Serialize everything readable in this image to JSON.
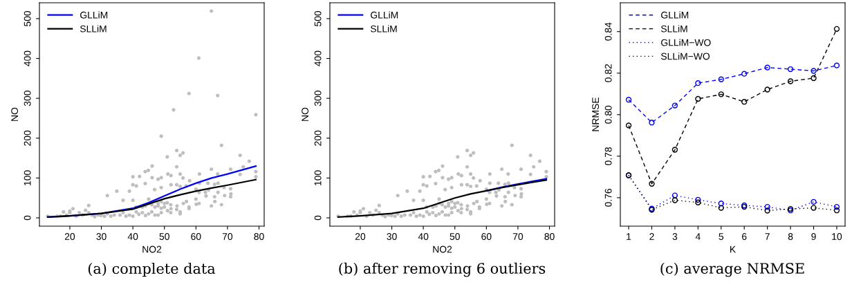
{
  "chart_data": [
    {
      "type": "scatter",
      "xlabel": "NO2",
      "ylabel": "NO",
      "xlim": [
        10.36,
        81.64
      ],
      "ylim": [
        -20.8,
        539.8
      ],
      "xticks": [
        20,
        30,
        40,
        50,
        60,
        70,
        80
      ],
      "yticks": [
        0,
        100,
        200,
        300,
        400,
        500
      ],
      "grid": false,
      "legend": "top left",
      "annotations": [
        "(a) complete data"
      ],
      "series": [
        {
          "type": "scatter",
          "color": "#bebebe",
          "marker": "circle",
          "x": [
            64.9,
            60.9,
            57.8,
            66.9,
            52.9,
            79.0,
            49.0,
            68.1,
            53.9,
            55.9,
            55.0,
            50.9,
            74.0,
            76.9,
            46.1,
            75.0,
            53.9,
            44.9,
            43.9,
            64.9,
            71.0,
            61.1,
            74.0,
            79.0,
            79.0,
            40.0,
            42.1,
            49.0,
            52.1,
            48.0,
            46.1,
            40.0,
            41.1,
            43.9,
            51.1,
            55.0,
            55.9,
            66.9,
            58.0,
            61.1,
            63.8,
            65.9,
            68.9,
            71.0,
            31.9,
            34.9,
            38.9,
            46.9,
            49.0,
            52.1,
            53.9,
            55.0,
            56.9,
            60.0,
            61.0,
            63.2,
            65.9,
            67.0,
            69.1,
            71.1,
            64.9,
            66.0,
            68.1,
            61.0,
            60.1,
            57.8,
            57.8,
            55.0,
            55.0,
            53.9,
            52.1,
            50.9,
            50.0,
            49.0,
            48.0,
            47.0,
            46.0,
            45.0,
            44.0,
            43.0,
            41.9,
            41.1,
            40.0,
            38.9,
            37.8,
            36.9,
            35.9,
            34.1,
            33.0,
            31.9,
            31.0,
            29.9,
            29.0,
            27.9,
            27.0,
            26.0,
            26.0,
            25.0,
            24.0,
            23.0,
            22.0,
            21.0,
            20.0,
            20.0,
            19.0,
            18.0,
            17.0,
            16.0,
            13.0,
            36.9,
            40.0,
            45.0,
            48.0,
            49.0,
            50.0,
            52.0,
            41.0,
            43.0,
            44.0,
            45.0,
            46.0,
            47.0,
            48.0,
            49.0,
            51.0,
            52.0,
            54.0,
            56.0,
            57.0,
            60.0,
            63.0,
            64.0,
            67.0,
            71.0
          ],
          "values": [
            519,
            401,
            312,
            307,
            271,
            259,
            205,
            182,
            169,
            163,
            157,
            153,
            157,
            142,
            130,
            128,
            128,
            119,
            116,
            122,
            122,
            110,
            109,
            116,
            103,
            103,
            104,
            101,
            106,
            97,
            101,
            83,
            80,
            86,
            110,
            110,
            100,
            110,
            93,
            87,
            87,
            84,
            76,
            73,
            56,
            67,
            67,
            71,
            76,
            83,
            83,
            79,
            80,
            72,
            64,
            55,
            53,
            64,
            56,
            60,
            30,
            41,
            33,
            36,
            34,
            27,
            23,
            15,
            10,
            21,
            23,
            38,
            27,
            13,
            7,
            7,
            15,
            10,
            6,
            13,
            9,
            15,
            4,
            7,
            4,
            13,
            7,
            7,
            4,
            10,
            4,
            6,
            7,
            3,
            7,
            13,
            31,
            19,
            7,
            13,
            4,
            23,
            13,
            17,
            7,
            15,
            4,
            4,
            4,
            44,
            44,
            47,
            30,
            41,
            36,
            33,
            27,
            27,
            30,
            36,
            33,
            27,
            36,
            24,
            18,
            13,
            30,
            36,
            41,
            47,
            64,
            70,
            87,
            53
          ]
        },
        {
          "type": "line",
          "name": "GLLiM",
          "color": "#0000ff",
          "line_style": "solid",
          "x": [
            13,
            20,
            30,
            40,
            45,
            50,
            55,
            60,
            65,
            70,
            79
          ],
          "values": [
            2,
            5,
            11,
            24,
            38,
            55,
            72,
            87,
            100,
            110,
            130
          ]
        },
        {
          "type": "line",
          "name": "SLLiM",
          "color": "#000000",
          "line_style": "solid",
          "x": [
            13,
            20,
            30,
            40,
            45,
            50,
            55,
            60,
            65,
            70,
            79
          ],
          "values": [
            2,
            5,
            11,
            22,
            35,
            48,
            58,
            67,
            75,
            82,
            96
          ]
        }
      ]
    },
    {
      "type": "scatter",
      "xlabel": "NO2",
      "ylabel": "NO",
      "xlim": [
        10.36,
        81.64
      ],
      "ylim": [
        -20.8,
        539.8
      ],
      "xticks": [
        20,
        30,
        40,
        50,
        60,
        70,
        80
      ],
      "yticks": [
        0,
        100,
        200,
        300,
        400,
        500
      ],
      "grid": false,
      "legend": "top left",
      "annotations": [
        "(b) after removing 6 outliers"
      ],
      "series": [
        {
          "type": "scatter",
          "color": "#bebebe",
          "marker": "circle",
          "x": [
            68.1,
            53.9,
            55.9,
            55.0,
            50.9,
            74.0,
            76.9,
            46.1,
            75.0,
            53.9,
            44.9,
            43.9,
            64.9,
            71.0,
            61.1,
            74.0,
            79.0,
            79.0,
            40.0,
            42.1,
            49.0,
            52.1,
            48.0,
            46.1,
            40.0,
            41.1,
            43.9,
            51.1,
            55.0,
            55.9,
            66.9,
            58.0,
            61.1,
            63.8,
            65.9,
            68.9,
            71.0,
            31.9,
            34.9,
            38.9,
            46.9,
            49.0,
            52.1,
            53.9,
            55.0,
            56.9,
            60.0,
            61.0,
            63.2,
            65.9,
            67.0,
            69.1,
            71.1,
            64.9,
            66.0,
            68.1,
            61.0,
            60.1,
            57.8,
            57.8,
            55.0,
            55.0,
            53.9,
            52.1,
            50.9,
            50.0,
            49.0,
            48.0,
            47.0,
            46.0,
            45.0,
            44.0,
            43.0,
            41.9,
            41.1,
            40.0,
            38.9,
            37.8,
            36.9,
            35.9,
            34.1,
            33.0,
            31.9,
            31.0,
            29.9,
            29.0,
            27.9,
            27.0,
            26.0,
            26.0,
            25.0,
            24.0,
            23.0,
            22.0,
            21.0,
            20.0,
            20.0,
            19.0,
            18.0,
            17.0,
            16.0,
            13.0,
            36.9,
            40.0,
            45.0,
            48.0,
            49.0,
            50.0,
            52.0,
            41.0,
            43.0,
            44.0,
            45.0,
            46.0,
            47.0,
            48.0,
            49.0,
            51.0,
            52.0,
            54.0,
            56.0,
            57.0,
            60.0,
            63.0,
            64.0,
            67.0,
            71.0
          ],
          "values": [
            182,
            169,
            163,
            157,
            153,
            157,
            142,
            130,
            128,
            128,
            119,
            116,
            122,
            122,
            110,
            109,
            116,
            103,
            103,
            104,
            101,
            106,
            97,
            101,
            83,
            80,
            86,
            110,
            110,
            100,
            110,
            93,
            87,
            87,
            84,
            76,
            73,
            56,
            67,
            67,
            71,
            76,
            83,
            83,
            79,
            80,
            72,
            64,
            55,
            53,
            64,
            56,
            60,
            30,
            41,
            33,
            36,
            34,
            27,
            23,
            15,
            10,
            21,
            23,
            38,
            27,
            13,
            7,
            7,
            15,
            10,
            6,
            13,
            9,
            15,
            4,
            7,
            4,
            13,
            7,
            7,
            4,
            10,
            4,
            6,
            7,
            3,
            7,
            13,
            31,
            19,
            7,
            13,
            4,
            23,
            13,
            17,
            7,
            15,
            4,
            4,
            4,
            44,
            44,
            47,
            30,
            41,
            36,
            33,
            27,
            27,
            30,
            36,
            33,
            27,
            36,
            24,
            18,
            13,
            30,
            36,
            41,
            47,
            64,
            70,
            87,
            53
          ]
        },
        {
          "type": "line",
          "name": "GLLiM",
          "color": "#0000ff",
          "line_style": "solid",
          "x": [
            60,
            65,
            70,
            79
          ],
          "values": [
            68,
            77,
            85,
            98
          ]
        },
        {
          "type": "line",
          "name": "SLLiM",
          "color": "#000000",
          "line_style": "solid",
          "x": [
            13,
            20,
            30,
            40,
            45,
            50,
            55,
            60,
            65,
            70,
            79
          ],
          "values": [
            2,
            5,
            11,
            24,
            37,
            50,
            60,
            68,
            76,
            83,
            95
          ]
        }
      ]
    },
    {
      "type": "line",
      "xlabel": "K",
      "ylabel": "NRMSE",
      "xlim": [
        0.64,
        10.36
      ],
      "ylim": [
        0.7463,
        0.8539
      ],
      "xticks": [
        1,
        2,
        3,
        4,
        5,
        6,
        7,
        8,
        9,
        10
      ],
      "yticks": [
        {
          "value": 0.76,
          "label": "0.76"
        },
        {
          "value": 0.78,
          "label": "0.78"
        },
        {
          "value": 0.8,
          "label": "0.80"
        },
        {
          "value": 0.82,
          "label": "0.82"
        },
        {
          "value": 0.84,
          "label": "0.84"
        }
      ],
      "grid": false,
      "legend": "top left",
      "marker": "circle",
      "annotations": [
        "(c) average NRMSE"
      ],
      "x": [
        1,
        2,
        3,
        4,
        5,
        6,
        7,
        8,
        9,
        10
      ],
      "series": [
        {
          "name": "GLLiM",
          "color": "#0000ff",
          "line_style": "dashed",
          "values": [
            0.8072,
            0.7962,
            0.8044,
            0.8152,
            0.817,
            0.8197,
            0.8227,
            0.8219,
            0.8211,
            0.8237
          ]
        },
        {
          "name": "SLLiM",
          "color": "#000000",
          "line_style": "dashed",
          "values": [
            0.7948,
            0.7667,
            0.7831,
            0.8076,
            0.8098,
            0.8062,
            0.8121,
            0.8161,
            0.8176,
            0.8413
          ]
        },
        {
          "name": "GLLiM−WO",
          "color": "#0000ff",
          "line_style": "dotted",
          "values": [
            0.7708,
            0.7547,
            0.7611,
            0.759,
            0.7572,
            0.7563,
            0.7556,
            0.7539,
            0.758,
            0.7556
          ]
        },
        {
          "name": "SLLiM−WO",
          "color": "#000000",
          "line_style": "dotted",
          "values": [
            0.7708,
            0.7542,
            0.7588,
            0.7577,
            0.7551,
            0.7556,
            0.7538,
            0.7546,
            0.7551,
            0.7539
          ]
        }
      ]
    }
  ]
}
